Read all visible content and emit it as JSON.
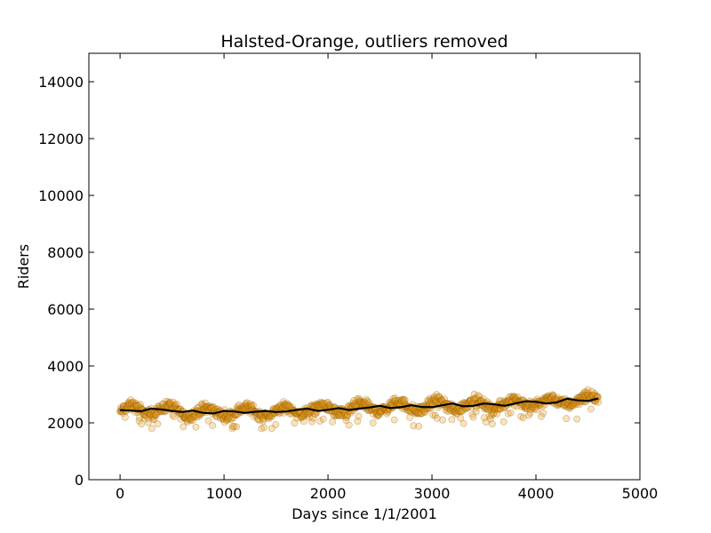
{
  "chart_data": {
    "type": "scatter",
    "title": "Halsted-Orange, outliers removed",
    "xlabel": "Days since 1/1/2001",
    "ylabel": "Riders",
    "xlim": [
      -300,
      5000
    ],
    "ylim": [
      0,
      15000
    ],
    "xticks": [
      0,
      1000,
      2000,
      3000,
      4000,
      5000
    ],
    "yticks": [
      0,
      2000,
      4000,
      6000,
      8000,
      10000,
      12000,
      14000
    ],
    "grid": false,
    "legend": "none",
    "colors": {
      "points_fill": "#f0a020",
      "points_edge": "#8a5a00",
      "trend_line": "#000000",
      "axes": "#000000",
      "background": "#ffffff"
    },
    "series": [
      {
        "kind": "scatter",
        "description_values": "daily ridership points, approx 4600 days",
        "x_range": [
          0,
          4600
        ],
        "approx_y_range": [
          1800,
          3300
        ]
      },
      {
        "kind": "line",
        "x": [
          0,
          100,
          200,
          300,
          400,
          500,
          600,
          700,
          800,
          900,
          1000,
          1100,
          1200,
          1300,
          1400,
          1500,
          1600,
          1700,
          1800,
          1900,
          2000,
          2100,
          2200,
          2300,
          2400,
          2500,
          2600,
          2700,
          2800,
          2900,
          3000,
          3100,
          3200,
          3300,
          3400,
          3500,
          3600,
          3700,
          3800,
          3900,
          4000,
          4100,
          4200,
          4300,
          4400,
          4500,
          4600
        ],
        "y": [
          2450,
          2430,
          2410,
          2500,
          2470,
          2420,
          2380,
          2430,
          2350,
          2330,
          2420,
          2400,
          2350,
          2390,
          2420,
          2380,
          2400,
          2460,
          2500,
          2420,
          2460,
          2520,
          2450,
          2500,
          2540,
          2600,
          2520,
          2550,
          2620,
          2560,
          2550,
          2620,
          2680,
          2580,
          2600,
          2680,
          2650,
          2600,
          2680,
          2760,
          2740,
          2680,
          2720,
          2850,
          2790,
          2770,
          2860
        ]
      }
    ]
  }
}
